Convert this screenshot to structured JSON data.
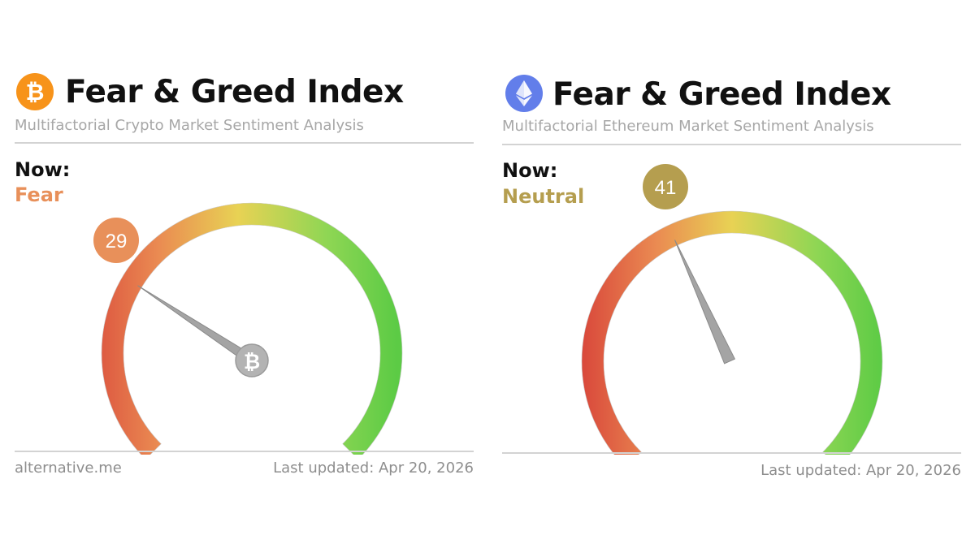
{
  "bitcoin": {
    "icon": "bitcoin-icon",
    "icon_color": "#f7931a",
    "title": "Fear & Greed Index",
    "subtitle": "Multifactorial Crypto Market Sentiment Analysis",
    "now_label": "Now:",
    "classification": "Fear",
    "classification_color": "#e8905a",
    "value": "29",
    "value_fraction": 0.29,
    "badge_color": "#e8905a",
    "source": "alternative.me",
    "last_updated": "Last updated: Apr 20, 2026"
  },
  "ethereum": {
    "icon": "ethereum-icon",
    "icon_color": "#627eea",
    "title": "Fear & Greed Index",
    "subtitle": "Multifactorial Ethereum Market Sentiment Analysis",
    "now_label": "Now:",
    "classification": "Neutral",
    "classification_color": "#b59e4f",
    "value": "41",
    "value_fraction": 0.41,
    "badge_color": "#b59e4f",
    "last_updated": "Last updated: Apr 20, 2026"
  },
  "gauge_colors": [
    "#d9483b",
    "#ea8b52",
    "#e8d254",
    "#8fd654",
    "#5ccb45"
  ]
}
